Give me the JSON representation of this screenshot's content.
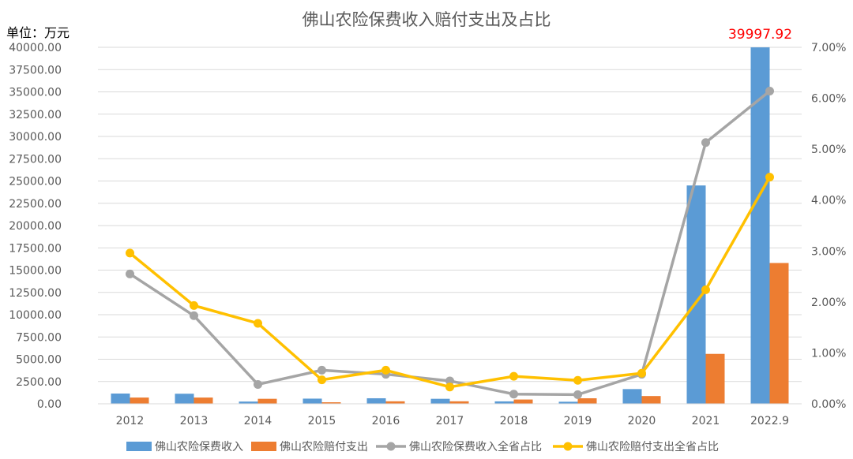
{
  "chart_data": {
    "type": "bar",
    "title": "佛山农险保费收入赔付支出及占比",
    "unit_label": "单位：万元",
    "categories": [
      "2012",
      "2013",
      "2014",
      "2015",
      "2016",
      "2017",
      "2018",
      "2019",
      "2020",
      "2021",
      "2022.9"
    ],
    "bar_series": [
      {
        "name": "佛山农险保费收入",
        "color": "#5b9bd5",
        "values": [
          1150,
          1130,
          250,
          580,
          620,
          560,
          270,
          230,
          1650,
          24500,
          39997.92
        ]
      },
      {
        "name": "佛山农险赔付支出",
        "color": "#ed7d31",
        "values": [
          700,
          700,
          560,
          170,
          280,
          280,
          480,
          620,
          870,
          5600,
          15800
        ]
      }
    ],
    "line_series": [
      {
        "name": "佛山农险保费收入全省占比",
        "color": "#a5a5a5",
        "values": [
          2.55,
          1.73,
          0.38,
          0.66,
          0.58,
          0.45,
          0.19,
          0.18,
          0.58,
          5.13,
          6.14
        ]
      },
      {
        "name": "佛山农险赔付支出全省占比",
        "color": "#ffc000",
        "values": [
          2.96,
          1.93,
          1.58,
          0.47,
          0.66,
          0.33,
          0.54,
          0.46,
          0.6,
          2.24,
          4.45
        ]
      }
    ],
    "y_left": {
      "min": 0,
      "max": 40000,
      "ticks": [
        "0.00",
        "2500.00",
        "5000.00",
        "7500.00",
        "10000.00",
        "12500.00",
        "15000.00",
        "17500.00",
        "20000.00",
        "22500.00",
        "25000.00",
        "27500.00",
        "30000.00",
        "32500.00",
        "35000.00",
        "37500.00",
        "40000.00"
      ]
    },
    "y_right": {
      "min": 0,
      "max": 7,
      "ticks": [
        "0.00%",
        "1.00%",
        "2.00%",
        "3.00%",
        "4.00%",
        "5.00%",
        "6.00%",
        "7.00%"
      ]
    },
    "annotation": {
      "text": "39997.92",
      "category": "2022.9",
      "color": "#ff0000"
    },
    "grid": true,
    "legend_position": "bottom"
  }
}
